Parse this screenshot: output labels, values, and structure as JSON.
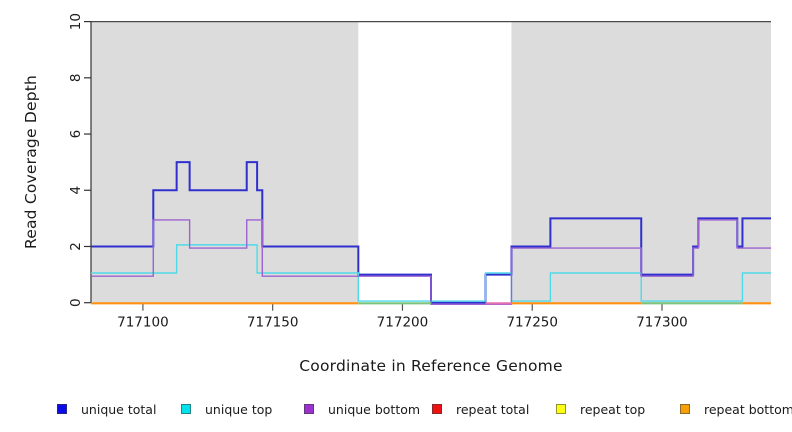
{
  "figure": {
    "kind": "read coverage step plot",
    "background": "#ffffff",
    "plot_shading_color": "#dcdcdc",
    "frame_color": "#4a4a4a"
  },
  "axes": {
    "x": {
      "label": "Coordinate in Reference Genome",
      "range": [
        717080,
        717342
      ],
      "ticks": [
        {
          "value": 717100,
          "label": "717100"
        },
        {
          "value": 717150,
          "label": "717150"
        },
        {
          "value": 717200,
          "label": "717200"
        },
        {
          "value": 717250,
          "label": "717250"
        },
        {
          "value": 717300,
          "label": "717300"
        }
      ]
    },
    "y": {
      "label": "Read Coverage Depth",
      "range": [
        0,
        10
      ],
      "ticks": [
        {
          "value": 0,
          "label": "0"
        },
        {
          "value": 2,
          "label": "2"
        },
        {
          "value": 4,
          "label": "4"
        },
        {
          "value": 6,
          "label": "6"
        },
        {
          "value": 8,
          "label": "8"
        },
        {
          "value": 10,
          "label": "10"
        }
      ]
    }
  },
  "chart_data": {
    "type": "line",
    "step": true,
    "x_range": [
      717080,
      717342
    ],
    "ylim": [
      0,
      10
    ],
    "shaded_regions": [
      [
        717080,
        717183
      ],
      [
        717242,
        717342
      ]
    ],
    "series": [
      {
        "name": "unique total",
        "color": "#3030cf",
        "legend_color": "#0b0bea",
        "points": [
          [
            717080,
            2
          ],
          [
            717104,
            4
          ],
          [
            717113,
            5
          ],
          [
            717118,
            4
          ],
          [
            717140,
            5
          ],
          [
            717144,
            4
          ],
          [
            717146,
            2
          ],
          [
            717183,
            1
          ],
          [
            717211,
            0
          ],
          [
            717232,
            1
          ],
          [
            717242,
            2
          ],
          [
            717257,
            3
          ],
          [
            717292,
            1
          ],
          [
            717312,
            2
          ],
          [
            717314,
            3
          ],
          [
            717329,
            2
          ],
          [
            717331,
            3
          ]
        ]
      },
      {
        "name": "unique top",
        "color": "#4fd9e8",
        "legend_color": "#00e1ea",
        "points": [
          [
            717080,
            1
          ],
          [
            717113,
            2
          ],
          [
            717144,
            1
          ],
          [
            717183,
            0
          ],
          [
            717232,
            1
          ],
          [
            717242,
            0
          ],
          [
            717257,
            1
          ],
          [
            717292,
            0
          ],
          [
            717331,
            1
          ]
        ]
      },
      {
        "name": "unique bottom",
        "color": "#9b63d0",
        "legend_color": "#9a32cd",
        "points": [
          [
            717080,
            1
          ],
          [
            717104,
            3
          ],
          [
            717118,
            2
          ],
          [
            717140,
            3
          ],
          [
            717146,
            1
          ],
          [
            717211,
            0
          ],
          [
            717242,
            2
          ],
          [
            717292,
            1
          ],
          [
            717312,
            2
          ],
          [
            717314,
            3
          ],
          [
            717329,
            2
          ]
        ]
      },
      {
        "name": "repeat total",
        "color": "#ee1111",
        "legend_color": "#ee1111",
        "points": [
          [
            717080,
            0
          ]
        ]
      },
      {
        "name": "repeat top",
        "color": "#ffff33",
        "legend_color": "#fdfd13",
        "points": [
          [
            717080,
            0
          ]
        ]
      },
      {
        "name": "repeat bottom",
        "color": "#f59a00",
        "legend_color": "#f5a009",
        "points": [
          [
            717080,
            0
          ]
        ]
      }
    ],
    "baseline_segments": [
      {
        "from": 717080,
        "to": 717183,
        "color": "#ff9012"
      },
      {
        "from": 717183,
        "to": 717211,
        "color": "#7cc47c"
      },
      {
        "from": 717232,
        "to": 717242,
        "color": "#e070b0"
      },
      {
        "from": 717242,
        "to": 717292,
        "color": "#ff9012"
      },
      {
        "from": 717292,
        "to": 717331,
        "color": "#7cc47c"
      },
      {
        "from": 717331,
        "to": 717342,
        "color": "#ff9012"
      }
    ]
  },
  "legend": {
    "items": [
      {
        "label": "unique total",
        "color": "#0b0bea"
      },
      {
        "label": "unique top",
        "color": "#00e1ea"
      },
      {
        "label": "unique bottom",
        "color": "#9a32cd"
      },
      {
        "label": "repeat total",
        "color": "#ee1111"
      },
      {
        "label": "repeat top",
        "color": "#fdfd13"
      },
      {
        "label": "repeat bottom",
        "color": "#f5a009"
      }
    ]
  }
}
